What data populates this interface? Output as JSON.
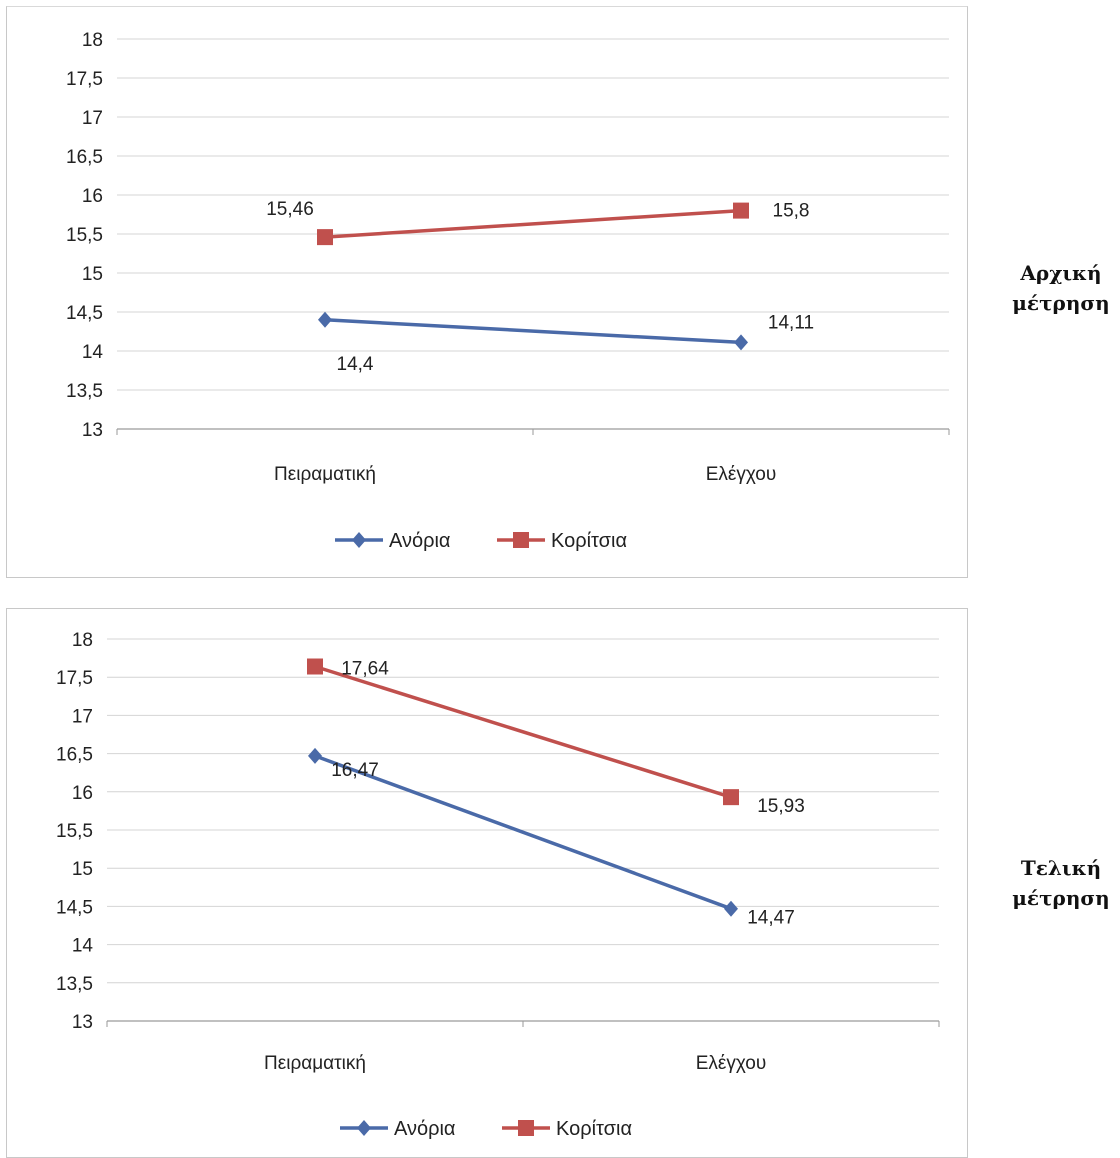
{
  "chart_data": [
    {
      "type": "line",
      "categories": [
        "Πειραματική",
        "Ελέγχου"
      ],
      "series": [
        {
          "name": "Ανόρια",
          "values": [
            14.4,
            14.11
          ],
          "labels": [
            "14,4",
            "14,11"
          ],
          "color": "#4a6aa8",
          "marker": "diamond"
        },
        {
          "name": "Κορίτσια",
          "values": [
            15.46,
            15.8
          ],
          "labels": [
            "15,46",
            "15,8"
          ],
          "color": "#c0504d",
          "marker": "square"
        }
      ],
      "ylim": [
        13,
        18
      ],
      "yticks": [
        "13",
        "13,5",
        "14",
        "14,5",
        "15",
        "15,5",
        "16",
        "16,5",
        "17",
        "17,5",
        "18"
      ],
      "grid": true,
      "legend": "bottom",
      "side_label": [
        "Αρχική",
        "μέτρηση"
      ]
    },
    {
      "type": "line",
      "categories": [
        "Πειραματική",
        "Ελέγχου"
      ],
      "series": [
        {
          "name": "Ανόρια",
          "values": [
            16.47,
            14.47
          ],
          "labels": [
            "16,47",
            "14,47"
          ],
          "color": "#4a6aa8",
          "marker": "diamond"
        },
        {
          "name": "Κορίτσια",
          "values": [
            17.64,
            15.93
          ],
          "labels": [
            "17,64",
            "15,93"
          ],
          "color": "#c0504d",
          "marker": "square"
        }
      ],
      "ylim": [
        13,
        18
      ],
      "yticks": [
        "13",
        "13,5",
        "14",
        "14,5",
        "15",
        "15,5",
        "16",
        "16,5",
        "17",
        "17,5",
        "18"
      ],
      "grid": true,
      "legend": "bottom",
      "side_label": [
        "Τελική",
        "μέτρηση"
      ]
    }
  ]
}
